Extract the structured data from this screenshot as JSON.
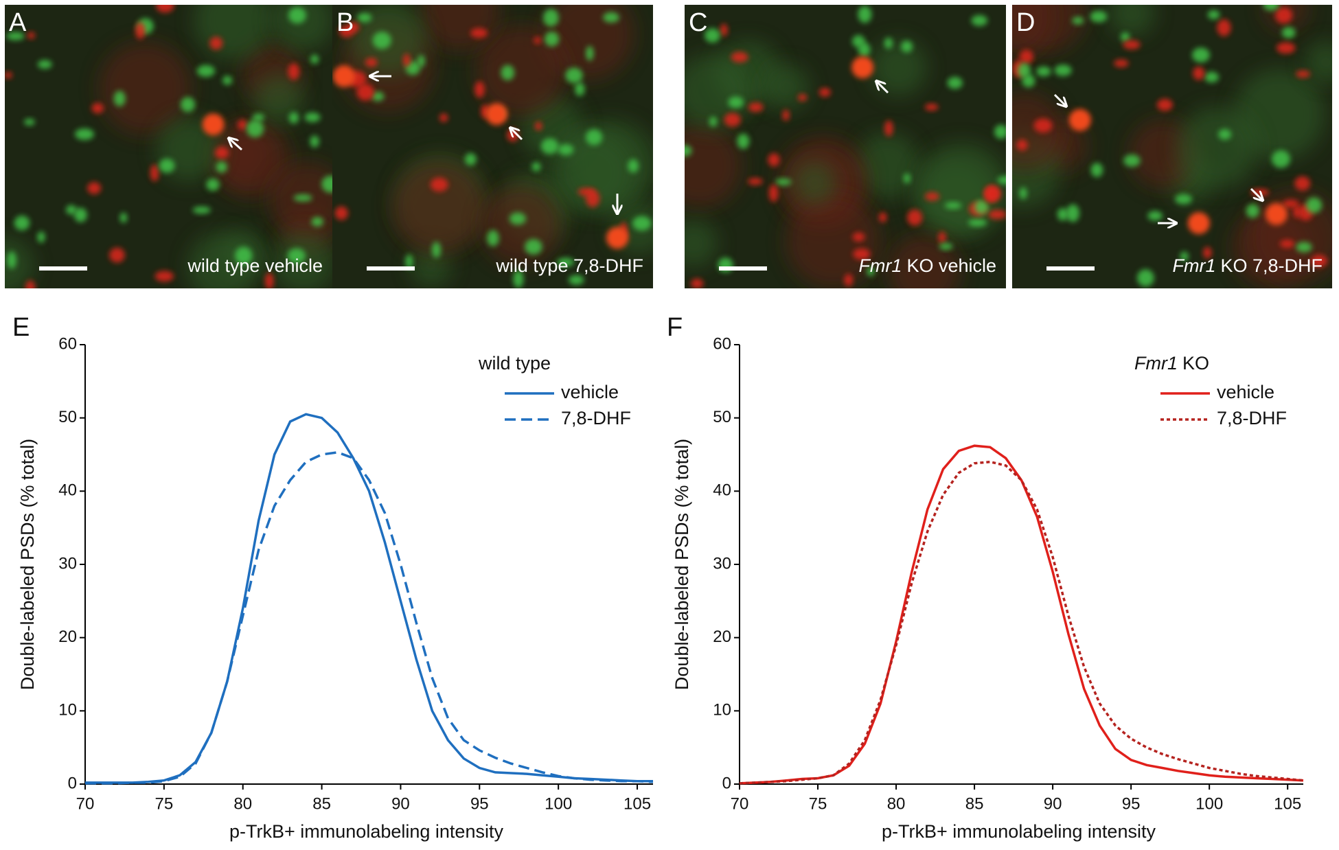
{
  "images": [
    {
      "label": "A",
      "caption": "wild type vehicle"
    },
    {
      "label": "B",
      "caption": "wild type 7,8-DHF"
    },
    {
      "label": "C",
      "caption_italic": "Fmr1",
      "caption": "KO vehicle"
    },
    {
      "label": "D",
      "caption_italic": "Fmr1",
      "caption": "KO 7,8-DHF"
    }
  ],
  "chart_data": [
    {
      "type": "line",
      "label": "E",
      "x_label": "p-TrkB+ immunolabeling intensity",
      "y_label": "Double-labeled PSDs (% total)",
      "legend_title": "wild type",
      "x": [
        70,
        71,
        72,
        73,
        74,
        75,
        76,
        77,
        78,
        79,
        80,
        81,
        82,
        83,
        84,
        85,
        86,
        87,
        88,
        89,
        90,
        91,
        92,
        93,
        94,
        95,
        96,
        97,
        98,
        99,
        100,
        101,
        102,
        103,
        104,
        105,
        106
      ],
      "xlim": [
        70,
        106
      ],
      "xticks": [
        70,
        75,
        80,
        85,
        90,
        95,
        100,
        105
      ],
      "ylim": [
        0,
        60
      ],
      "yticks": [
        0,
        10,
        20,
        30,
        40,
        50,
        60
      ],
      "series": [
        {
          "name": "vehicle",
          "color": "#1f6fbf",
          "style": "solid",
          "values": [
            0.2,
            0.2,
            0.2,
            0.2,
            0.3,
            0.5,
            1.2,
            3,
            7,
            14,
            24,
            36,
            45,
            49.5,
            50.5,
            50,
            48,
            44.5,
            40,
            33,
            25,
            17,
            10,
            6,
            3.5,
            2.2,
            1.6,
            1.5,
            1.4,
            1.2,
            1,
            0.8,
            0.7,
            0.6,
            0.5,
            0.4,
            0.4
          ]
        },
        {
          "name": "7,8-DHF",
          "color": "#1f6fbf",
          "style": "dashed",
          "values": [
            0.1,
            0.1,
            0.1,
            0.2,
            0.2,
            0.4,
            1,
            2.8,
            7,
            14,
            23,
            32,
            38,
            41.5,
            44,
            45,
            45.3,
            44.5,
            41.5,
            37,
            30,
            22,
            14.5,
            9,
            6,
            4.6,
            3.6,
            2.8,
            2.2,
            1.6,
            1.1,
            0.8,
            0.6,
            0.5,
            0.4,
            0.4,
            0.3
          ]
        }
      ]
    },
    {
      "type": "line",
      "label": "F",
      "x_label": "p-TrkB+ immunolabeling intensity",
      "y_label": "Double-labeled PSDs (% total)",
      "legend_title_italic": "Fmr1",
      "legend_title": "KO",
      "x": [
        70,
        71,
        72,
        73,
        74,
        75,
        76,
        77,
        78,
        79,
        80,
        81,
        82,
        83,
        84,
        85,
        86,
        87,
        88,
        89,
        90,
        91,
        92,
        93,
        94,
        95,
        96,
        97,
        98,
        99,
        100,
        101,
        102,
        103,
        104,
        105,
        106
      ],
      "xlim": [
        70,
        106
      ],
      "xticks": [
        70,
        75,
        80,
        85,
        90,
        95,
        100,
        105
      ],
      "ylim": [
        0,
        60
      ],
      "yticks": [
        0,
        10,
        20,
        30,
        40,
        50,
        60
      ],
      "series": [
        {
          "name": "vehicle",
          "color": "#e0201b",
          "style": "solid",
          "values": [
            0.1,
            0.2,
            0.3,
            0.5,
            0.7,
            0.8,
            1.2,
            2.5,
            5.5,
            11,
            19.5,
            29,
            37.5,
            43,
            45.5,
            46.2,
            46,
            44.5,
            41.5,
            36.5,
            29,
            20.5,
            13,
            8,
            4.8,
            3.3,
            2.6,
            2.2,
            1.8,
            1.5,
            1.2,
            1,
            0.9,
            0.8,
            0.7,
            0.6,
            0.5
          ]
        },
        {
          "name": "7,8-DHF",
          "color": "#b5231f",
          "style": "dotted",
          "values": [
            0.1,
            0.2,
            0.3,
            0.4,
            0.6,
            0.8,
            1.2,
            2.8,
            6,
            11.5,
            19,
            27.5,
            34.5,
            39.5,
            42.5,
            43.8,
            44,
            43.5,
            41.5,
            37.5,
            31,
            23,
            16,
            11,
            8,
            6.2,
            5,
            4.1,
            3.4,
            2.8,
            2.2,
            1.8,
            1.4,
            1.1,
            0.9,
            0.7,
            0.5
          ]
        }
      ]
    }
  ]
}
